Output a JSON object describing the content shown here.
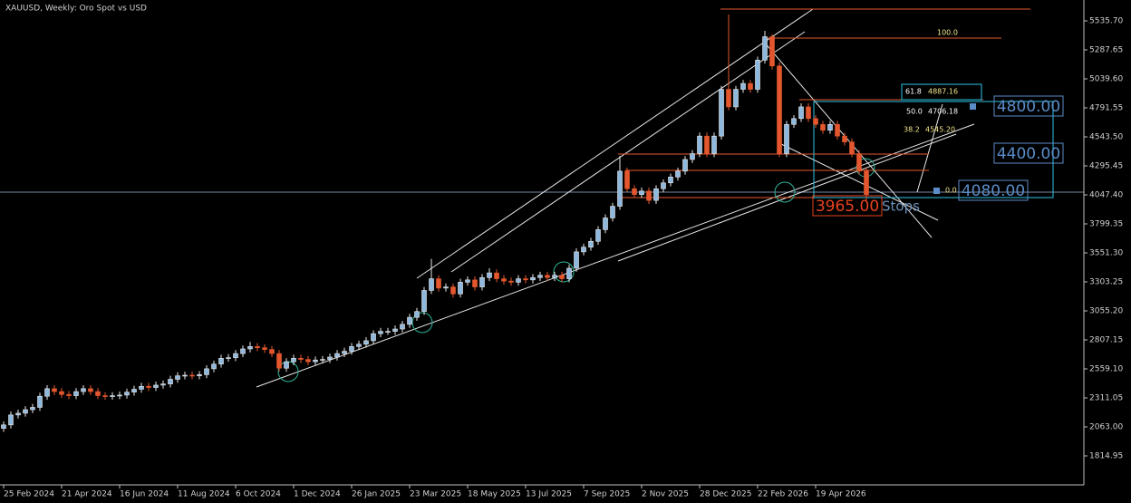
{
  "chart_data": {
    "type": "candlestick",
    "title": "XAUUSD, Weekly:  Oro Spot vs USD",
    "categories": [
      "25 Feb 2024",
      null,
      null,
      null,
      null,
      null,
      null,
      null,
      "21 Apr 2024",
      null,
      null,
      null,
      null,
      null,
      null,
      null,
      "16 Jun 2024",
      null,
      null,
      null,
      null,
      null,
      null,
      null,
      "11 Aug 2024",
      null,
      null,
      null,
      null,
      null,
      null,
      null,
      "6 Oct 2024",
      null,
      null,
      null,
      null,
      null,
      null,
      null,
      "1 Dec 2024",
      null,
      null,
      null,
      null,
      null,
      null,
      null,
      "26 Jan 2025",
      null,
      null,
      null,
      null,
      null,
      null,
      null,
      "23 Mar 2025",
      null,
      null,
      null,
      null,
      null,
      null,
      null,
      "18 May 2025",
      null,
      null,
      null,
      null,
      null,
      null,
      null,
      "13 Jul 2025",
      null,
      null,
      null,
      null,
      null,
      null,
      null,
      "7 Sep 2025",
      null,
      null,
      null,
      null,
      null,
      null,
      null,
      "2 Nov 2025",
      null,
      null,
      null,
      null,
      null,
      null,
      null,
      "28 Dec 2025",
      null,
      null,
      null,
      null,
      null,
      null,
      null,
      "22 Feb 2026",
      null,
      null,
      null,
      null,
      null,
      null,
      null,
      "19 Apr 2026",
      null,
      null,
      null,
      null,
      null,
      null,
      null
    ],
    "open": [
      2050,
      2080,
      2165,
      2180,
      2210,
      2230,
      2325,
      2390,
      2365,
      2340,
      2330,
      2365,
      2390,
      2365,
      2330,
      2325,
      2330,
      2335,
      2360,
      2385,
      2410,
      2400,
      2420,
      2430,
      2470,
      2500,
      2505,
      2500,
      2510,
      2560,
      2600,
      2650,
      2655,
      2690,
      2730,
      2750,
      2740,
      2725,
      2690,
      2565,
      2620,
      2650,
      2640,
      2620,
      2635,
      2640,
      2660,
      2690,
      2710,
      2750,
      2770,
      2800,
      2860,
      2880,
      2880,
      2900,
      2940,
      3000,
      3050,
      3230,
      3330,
      3250,
      3260,
      3200,
      3300,
      3320,
      3260,
      3340,
      3380,
      3330,
      3310,
      3300,
      3330,
      3320,
      3340,
      3360,
      3340,
      3360,
      3330,
      3420,
      3560,
      3600,
      3650,
      3750,
      3850,
      3950,
      4250,
      4100,
      4050,
      4080,
      4000,
      4100,
      4150,
      4200,
      4250,
      4350,
      4400,
      4550,
      4400,
      4550,
      4950,
      4800,
      4950,
      5000,
      4950,
      5200,
      5400,
      5150,
      4400,
      4650,
      4700,
      4800,
      4700,
      4650,
      4600,
      4650,
      4550,
      4500,
      4400,
      4250
    ],
    "high": [
      2110,
      2195,
      2210,
      2240,
      2260,
      2355,
      2420,
      2420,
      2395,
      2370,
      2395,
      2420,
      2420,
      2395,
      2360,
      2360,
      2365,
      2390,
      2415,
      2440,
      2440,
      2450,
      2460,
      2500,
      2530,
      2535,
      2535,
      2540,
      2590,
      2630,
      2680,
      2685,
      2720,
      2760,
      2790,
      2780,
      2770,
      2755,
      2720,
      2650,
      2680,
      2680,
      2670,
      2665,
      2670,
      2690,
      2720,
      2740,
      2780,
      2800,
      2830,
      2890,
      2910,
      2910,
      2930,
      2970,
      3030,
      3080,
      3260,
      3500,
      3360,
      3290,
      3290,
      3330,
      3350,
      3350,
      3370,
      3420,
      3410,
      3360,
      3340,
      3360,
      3360,
      3370,
      3390,
      3390,
      3390,
      3390,
      3450,
      3590,
      3630,
      3680,
      3780,
      3880,
      3980,
      4380,
      4280,
      4130,
      4110,
      4110,
      4130,
      4180,
      4230,
      4280,
      4380,
      4430,
      4580,
      4580,
      4580,
      4980,
      5590,
      4980,
      5030,
      5030,
      5230,
      5450,
      5420,
      5180,
      4680,
      4730,
      4830,
      4830,
      4730,
      4680,
      4680,
      4680,
      4580,
      4530,
      4430,
      4280
    ],
    "low": [
      2020,
      2050,
      2135,
      2150,
      2180,
      2200,
      2295,
      2335,
      2310,
      2300,
      2300,
      2335,
      2335,
      2300,
      2295,
      2295,
      2300,
      2305,
      2330,
      2355,
      2370,
      2370,
      2390,
      2400,
      2440,
      2470,
      2470,
      2470,
      2480,
      2530,
      2570,
      2620,
      2625,
      2660,
      2700,
      2710,
      2695,
      2660,
      2535,
      2535,
      2590,
      2610,
      2590,
      2590,
      2605,
      2610,
      2630,
      2660,
      2680,
      2720,
      2740,
      2770,
      2830,
      2850,
      2850,
      2870,
      2910,
      2970,
      3020,
      3200,
      3220,
      3220,
      3170,
      3170,
      3270,
      3230,
      3230,
      3310,
      3300,
      3280,
      3270,
      3270,
      3290,
      3290,
      3310,
      3310,
      3310,
      3300,
      3300,
      3390,
      3530,
      3570,
      3620,
      3720,
      3820,
      3920,
      4070,
      4020,
      4020,
      3970,
      3970,
      4070,
      4120,
      4170,
      4220,
      4320,
      4370,
      4370,
      4370,
      4520,
      4770,
      4770,
      4920,
      4920,
      4920,
      5170,
      5120,
      4370,
      4370,
      4620,
      4670,
      4670,
      4620,
      4570,
      4570,
      4520,
      4470,
      4370,
      4220,
      4000
    ],
    "close": [
      2080,
      2165,
      2180,
      2210,
      2230,
      2325,
      2390,
      2365,
      2340,
      2330,
      2365,
      2390,
      2365,
      2330,
      2325,
      2330,
      2335,
      2360,
      2385,
      2410,
      2400,
      2420,
      2430,
      2470,
      2500,
      2505,
      2500,
      2510,
      2560,
      2600,
      2650,
      2655,
      2690,
      2730,
      2750,
      2740,
      2725,
      2690,
      2565,
      2620,
      2650,
      2640,
      2620,
      2635,
      2640,
      2660,
      2690,
      2710,
      2750,
      2770,
      2800,
      2860,
      2880,
      2880,
      2900,
      2940,
      3000,
      3050,
      3230,
      3330,
      3250,
      3260,
      3200,
      3300,
      3320,
      3260,
      3340,
      3380,
      3330,
      3310,
      3300,
      3330,
      3320,
      3340,
      3360,
      3340,
      3360,
      3330,
      3420,
      3560,
      3600,
      3650,
      3750,
      3850,
      3950,
      4250,
      4100,
      4050,
      4080,
      4000,
      4100,
      4150,
      4200,
      4250,
      4350,
      4400,
      4550,
      4400,
      4550,
      4950,
      4800,
      4950,
      5000,
      4950,
      5200,
      5400,
      5150,
      4400,
      4650,
      4700,
      4800,
      4700,
      4650,
      4600,
      4650,
      4550,
      4500,
      4400,
      4250,
      4050
    ],
    "up_color": "#8fb8de",
    "down_color": "#e4572e",
    "ylim": [
      1567,
      5714
    ],
    "yticks": [
      1814.95,
      {
        "value": 2063,
        "label": "2063.00"
      },
      2311.05,
      {
        "value": 2559.1,
        "label": "2559.10"
      },
      2807.15,
      {
        "value": 3055.2,
        "label": "3055.20"
      },
      3303.25,
      {
        "value": 3551.3,
        "label": "3551.30"
      },
      3799.35,
      {
        "value": 4047.4,
        "label": "4047.40"
      },
      4295.45,
      {
        "value": 4543.5,
        "label": "4543.50"
      },
      4791.55,
      {
        "value": 5039.6,
        "label": "5039.60"
      },
      5287.65,
      {
        "value": 5535.7,
        "label": "5535.70"
      }
    ],
    "annotations": {
      "levels": [
        "4800.00",
        "4400.00",
        "4080.00",
        "3965.00"
      ],
      "stops": "Stops",
      "fib": [
        "100.0",
        "61.8",
        "4887.16",
        "50.0",
        "4706.18",
        "38.2",
        "4545.20",
        "0.0"
      ]
    }
  }
}
